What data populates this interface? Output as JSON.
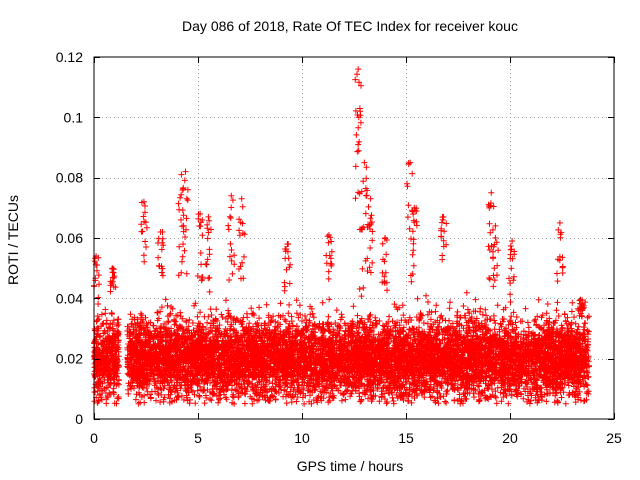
{
  "chart_data": {
    "type": "scatter",
    "title": "Day 086 of 2018, Rate Of TEC Index for receiver kouc",
    "xlabel": "GPS time / hours",
    "ylabel": "ROTI / TECUs",
    "xlim": [
      0,
      25
    ],
    "ylim": [
      0,
      0.12
    ],
    "xticks": [
      0,
      5,
      10,
      15,
      20,
      25
    ],
    "yticks": [
      0,
      0.02,
      0.04,
      0.06,
      0.08,
      0.1,
      0.12
    ],
    "ytick_labels": [
      "0",
      "0.02",
      "0.04",
      "0.06",
      "0.08",
      "0.1",
      "0.12"
    ],
    "grid": true,
    "marker": "+",
    "series": [
      {
        "name": "ROTI",
        "color": "#ff0000",
        "time_range": [
          0,
          23.8
        ],
        "gap": [
          1.2,
          1.6
        ],
        "typical_range": [
          0.005,
          0.04
        ],
        "peaks": [
          {
            "x": 0.1,
            "y": 0.054
          },
          {
            "x": 0.9,
            "y": 0.05
          },
          {
            "x": 2.4,
            "y": 0.072
          },
          {
            "x": 3.2,
            "y": 0.062
          },
          {
            "x": 4.2,
            "y": 0.081
          },
          {
            "x": 4.4,
            "y": 0.082
          },
          {
            "x": 5.1,
            "y": 0.068
          },
          {
            "x": 5.5,
            "y": 0.067
          },
          {
            "x": 6.6,
            "y": 0.074
          },
          {
            "x": 7.1,
            "y": 0.073
          },
          {
            "x": 9.3,
            "y": 0.058
          },
          {
            "x": 11.3,
            "y": 0.061
          },
          {
            "x": 12.7,
            "y": 0.116
          },
          {
            "x": 12.8,
            "y": 0.102
          },
          {
            "x": 13.0,
            "y": 0.085
          },
          {
            "x": 13.3,
            "y": 0.073
          },
          {
            "x": 14.0,
            "y": 0.06
          },
          {
            "x": 15.2,
            "y": 0.085
          },
          {
            "x": 15.4,
            "y": 0.07
          },
          {
            "x": 16.8,
            "y": 0.067
          },
          {
            "x": 19.1,
            "y": 0.075
          },
          {
            "x": 19.3,
            "y": 0.064
          },
          {
            "x": 20.1,
            "y": 0.059
          },
          {
            "x": 22.4,
            "y": 0.065
          },
          {
            "x": 23.4,
            "y": 0.036
          }
        ]
      }
    ]
  }
}
